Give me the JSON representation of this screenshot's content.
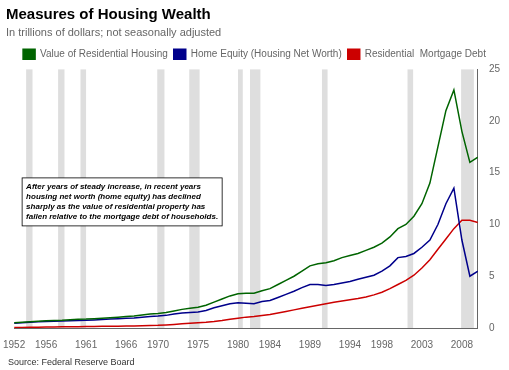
{
  "chart_data": {
    "type": "line",
    "title": "Measures of Housing Wealth",
    "subtitle": "In trillions of dollars; not seasonally adjusted",
    "source": "Source: Federal Reserve Board",
    "x": [
      1952,
      1953,
      1954,
      1955,
      1956,
      1957,
      1958,
      1959,
      1960,
      1961,
      1962,
      1963,
      1964,
      1965,
      1966,
      1967,
      1968,
      1969,
      1970,
      1971,
      1972,
      1973,
      1974,
      1975,
      1976,
      1977,
      1978,
      1979,
      1980,
      1981,
      1982,
      1983,
      1984,
      1985,
      1986,
      1987,
      1988,
      1989,
      1990,
      1991,
      1992,
      1993,
      1994,
      1995,
      1996,
      1997,
      1998,
      1999,
      2000,
      2001,
      2002,
      2003,
      2004,
      2005,
      2006,
      2007,
      2008,
      2009,
      2010
    ],
    "series": [
      {
        "name": "Value of Residential Housing",
        "color": "#006400",
        "values": [
          0.5,
          0.55,
          0.6,
          0.65,
          0.7,
          0.73,
          0.75,
          0.8,
          0.84,
          0.86,
          0.9,
          0.95,
          1.0,
          1.05,
          1.1,
          1.15,
          1.25,
          1.35,
          1.4,
          1.5,
          1.65,
          1.8,
          1.9,
          2.0,
          2.2,
          2.5,
          2.8,
          3.1,
          3.3,
          3.35,
          3.35,
          3.6,
          3.8,
          4.2,
          4.6,
          5.0,
          5.5,
          6.0,
          6.2,
          6.3,
          6.5,
          6.8,
          7.0,
          7.2,
          7.5,
          7.8,
          8.2,
          8.8,
          9.6,
          10.0,
          10.8,
          12.0,
          14.0,
          17.5,
          21.0,
          23.0,
          19.0,
          16.0,
          16.5
        ]
      },
      {
        "name": "Home Equity (Housing Net Worth)",
        "color": "#00008B",
        "values": [
          0.45,
          0.5,
          0.55,
          0.6,
          0.63,
          0.65,
          0.67,
          0.7,
          0.73,
          0.75,
          0.78,
          0.82,
          0.86,
          0.9,
          0.93,
          0.97,
          1.05,
          1.12,
          1.15,
          1.22,
          1.35,
          1.45,
          1.5,
          1.55,
          1.7,
          1.95,
          2.15,
          2.35,
          2.45,
          2.4,
          2.35,
          2.55,
          2.65,
          2.95,
          3.25,
          3.55,
          3.9,
          4.2,
          4.2,
          4.1,
          4.2,
          4.35,
          4.5,
          4.7,
          4.9,
          5.1,
          5.5,
          6.0,
          6.8,
          6.9,
          7.2,
          7.8,
          8.5,
          10.0,
          12.0,
          13.5,
          8.5,
          5.0,
          5.5
        ]
      },
      {
        "name": "Residential  Mortgage Debt",
        "color": "#CC0000",
        "values": [
          0.05,
          0.06,
          0.07,
          0.08,
          0.09,
          0.1,
          0.11,
          0.12,
          0.13,
          0.14,
          0.15,
          0.16,
          0.17,
          0.18,
          0.19,
          0.2,
          0.22,
          0.24,
          0.26,
          0.3,
          0.35,
          0.4,
          0.45,
          0.5,
          0.55,
          0.62,
          0.72,
          0.84,
          0.95,
          1.05,
          1.1,
          1.2,
          1.3,
          1.45,
          1.6,
          1.75,
          1.9,
          2.05,
          2.2,
          2.35,
          2.48,
          2.6,
          2.72,
          2.85,
          3.0,
          3.2,
          3.45,
          3.8,
          4.2,
          4.6,
          5.1,
          5.8,
          6.6,
          7.6,
          8.6,
          9.6,
          10.4,
          10.4,
          10.2
        ]
      }
    ],
    "xlim": [
      1952,
      2010
    ],
    "xticks": [
      1952,
      1956,
      1961,
      1966,
      1970,
      1975,
      1980,
      1984,
      1989,
      1994,
      1998,
      2003,
      2008
    ],
    "ylim": [
      0,
      25
    ],
    "yticks": [
      0,
      5,
      10,
      15,
      20,
      25
    ],
    "grid": false,
    "legend": "top",
    "recession_bands": [
      [
        1953.5,
        1954.3
      ],
      [
        1957.5,
        1958.3
      ],
      [
        1960.3,
        1961.0
      ],
      [
        1969.9,
        1970.8
      ],
      [
        1973.9,
        1975.2
      ],
      [
        1980.0,
        1980.6
      ],
      [
        1981.5,
        1982.8
      ],
      [
        1990.5,
        1991.2
      ],
      [
        2001.2,
        2001.9
      ],
      [
        2007.9,
        2009.5
      ]
    ],
    "annotations": [
      "After years of steady increase, in recent years\nhousing net worth (home equity) has declined\nsharply as the value of residential property has\nfallen relative to the mortgage debt of households."
    ]
  }
}
